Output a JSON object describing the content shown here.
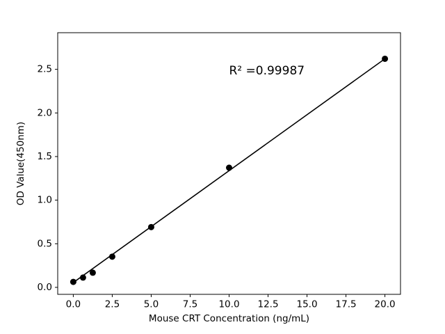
{
  "chart_data": {
    "type": "scatter",
    "title": "",
    "xlabel": "Mouse CRT Concentration (ng/mL)",
    "ylabel": "OD Value(450nm)",
    "x": [
      0,
      0.625,
      1.25,
      2.5,
      5,
      10,
      20
    ],
    "y": [
      0.063,
      0.112,
      0.168,
      0.352,
      0.691,
      1.372,
      2.621
    ],
    "fit_line": {
      "x": [
        0,
        20
      ],
      "y": [
        0.055,
        2.621
      ]
    },
    "annotation": {
      "text": "R² =0.99987",
      "x": 10.0,
      "y": 2.48
    },
    "xlim": [
      -1,
      21
    ],
    "ylim": [
      -0.08,
      2.92
    ],
    "xticks": [
      0.0,
      2.5,
      5.0,
      7.5,
      10.0,
      12.5,
      15.0,
      17.5,
      20.0
    ],
    "xtick_labels": [
      "0.0",
      "2.5",
      "5.0",
      "7.5",
      "10.0",
      "12.5",
      "15.0",
      "17.5",
      "20.0"
    ],
    "yticks": [
      0.0,
      0.5,
      1.0,
      1.5,
      2.0,
      2.5
    ],
    "ytick_labels": [
      "0.0",
      "0.5",
      "1.0",
      "1.5",
      "2.0",
      "2.5"
    ],
    "grid": false,
    "legend": null,
    "marker_color": "#000000",
    "line_color": "#000000",
    "background": "#ffffff"
  }
}
